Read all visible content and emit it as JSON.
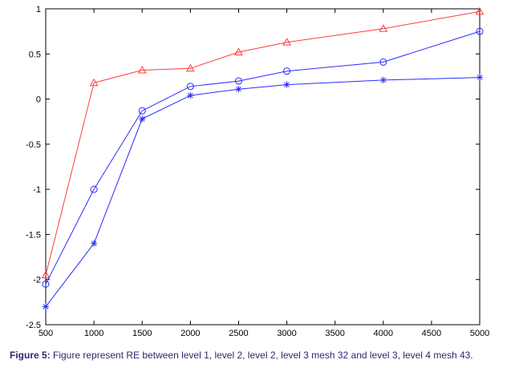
{
  "chart_data": {
    "type": "line",
    "title": "",
    "xlabel": "",
    "ylabel": "",
    "xlim": [
      500,
      5000
    ],
    "ylim": [
      -2.5,
      1
    ],
    "x_ticks": [
      "500",
      "1000",
      "1500",
      "2000",
      "2500",
      "3000",
      "3500",
      "4000",
      "4500",
      "5000"
    ],
    "y_ticks": [
      "1",
      "0.5",
      "0",
      "-0.5",
      "-1",
      "-1.5",
      "-2",
      "-2.5"
    ],
    "x": [
      500,
      1000,
      1500,
      2000,
      2500,
      3000,
      4000,
      5000
    ],
    "grid": false,
    "legend": "none",
    "series": [
      {
        "marker": "triangle",
        "color": "#ff3b3b",
        "values": [
          -1.95,
          0.18,
          0.32,
          0.34,
          0.52,
          0.63,
          0.78,
          0.97
        ]
      },
      {
        "marker": "circle",
        "color": "#2b2bff",
        "values": [
          -2.05,
          -1.0,
          -0.13,
          0.14,
          0.2,
          0.31,
          0.41,
          0.75
        ]
      },
      {
        "marker": "star",
        "color": "#2b2bff",
        "values": [
          -2.3,
          -1.6,
          -0.22,
          0.04,
          0.11,
          0.16,
          0.21,
          0.24
        ]
      }
    ]
  },
  "caption": {
    "label": "Figure 5:",
    "text": " Figure represent RE between level 1, level 2, level 2, level 3 mesh 32 and level 3, level 4 mesh 43."
  }
}
